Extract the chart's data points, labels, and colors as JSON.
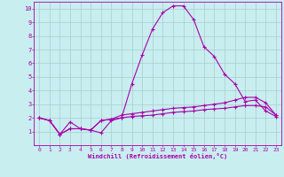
{
  "xlabel": "Windchill (Refroidissement éolien,°C)",
  "bg_color": "#c8eef0",
  "line_color": "#aa00aa",
  "grid_color": "#aacccc",
  "xlim": [
    -0.5,
    23.5
  ],
  "ylim": [
    0,
    10.5
  ],
  "xticks": [
    0,
    1,
    2,
    3,
    4,
    5,
    6,
    7,
    8,
    9,
    10,
    11,
    12,
    13,
    14,
    15,
    16,
    17,
    18,
    19,
    20,
    21,
    22,
    23
  ],
  "yticks": [
    1,
    2,
    3,
    4,
    5,
    6,
    7,
    8,
    9,
    10
  ],
  "line1_x": [
    0,
    1,
    2,
    3,
    4,
    5,
    6,
    7,
    8,
    9,
    10,
    11,
    12,
    13,
    14,
    15,
    16,
    17,
    18,
    19,
    20,
    21,
    22,
    23
  ],
  "line1_y": [
    2.0,
    1.8,
    0.8,
    1.7,
    1.2,
    1.1,
    0.9,
    1.8,
    2.0,
    4.5,
    6.6,
    8.5,
    9.7,
    10.2,
    10.2,
    9.2,
    7.2,
    6.5,
    5.2,
    4.5,
    3.2,
    3.3,
    2.5,
    2.1
  ],
  "line2_x": [
    0,
    1,
    2,
    3,
    4,
    5,
    6,
    7,
    8,
    9,
    10,
    11,
    12,
    13,
    14,
    15,
    16,
    17,
    18,
    19,
    20,
    21,
    22,
    23
  ],
  "line2_y": [
    2.0,
    1.8,
    0.8,
    1.2,
    1.2,
    1.1,
    1.8,
    1.9,
    2.2,
    2.3,
    2.4,
    2.5,
    2.6,
    2.7,
    2.75,
    2.8,
    2.9,
    3.0,
    3.1,
    3.3,
    3.5,
    3.5,
    3.1,
    2.2
  ],
  "line3_x": [
    0,
    1,
    2,
    3,
    4,
    5,
    6,
    7,
    8,
    9,
    10,
    11,
    12,
    13,
    14,
    15,
    16,
    17,
    18,
    19,
    20,
    21,
    22,
    23
  ],
  "line3_y": [
    2.0,
    1.8,
    0.8,
    1.2,
    1.2,
    1.1,
    1.8,
    1.9,
    2.0,
    2.1,
    2.15,
    2.2,
    2.3,
    2.4,
    2.45,
    2.5,
    2.6,
    2.65,
    2.7,
    2.8,
    2.9,
    2.9,
    2.8,
    2.2
  ]
}
